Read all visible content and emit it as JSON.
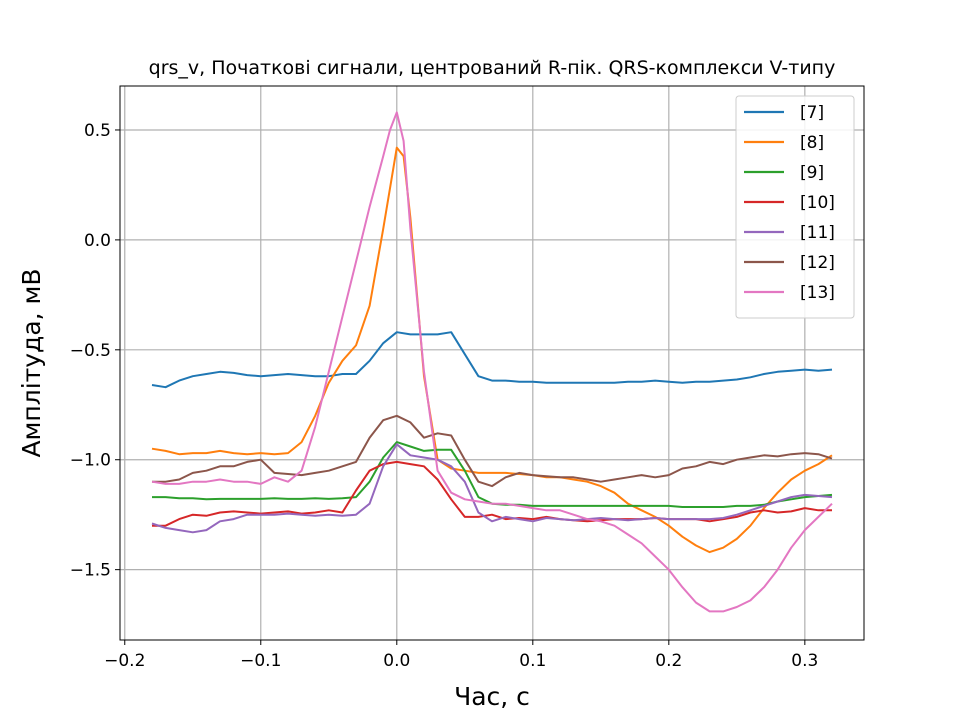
{
  "chart_data": {
    "type": "line",
    "title": "qrs_v, Початкові сигнали, центрований R-пік. QRS-комплекси V-типу",
    "xlabel": "Час, с",
    "ylabel": "Амплітуда, мВ",
    "xlim": [
      -0.2035,
      0.3435
    ],
    "ylim": [
      -1.82,
      0.7
    ],
    "xticks": [
      -0.2,
      -0.1,
      0.0,
      0.1,
      0.2,
      0.3
    ],
    "xtick_labels": [
      "−0.2",
      "−0.1",
      "0.0",
      "0.1",
      "0.2",
      "0.3"
    ],
    "yticks": [
      -1.5,
      -1.0,
      -0.5,
      0.0,
      0.5
    ],
    "ytick_labels": [
      "−1.5",
      "−1.0",
      "−0.5",
      "0.0",
      "0.5"
    ],
    "grid": true,
    "legend_position": "top-right",
    "series": [
      {
        "name": "[7]",
        "color": "#1f77b4",
        "x": [
          -0.18,
          -0.17,
          -0.16,
          -0.15,
          -0.14,
          -0.13,
          -0.12,
          -0.11,
          -0.1,
          -0.09,
          -0.08,
          -0.07,
          -0.06,
          -0.05,
          -0.04,
          -0.03,
          -0.02,
          -0.01,
          0.0,
          0.01,
          0.02,
          0.03,
          0.04,
          0.05,
          0.06,
          0.07,
          0.08,
          0.09,
          0.1,
          0.11,
          0.12,
          0.13,
          0.14,
          0.15,
          0.16,
          0.17,
          0.18,
          0.19,
          0.2,
          0.21,
          0.22,
          0.23,
          0.24,
          0.25,
          0.26,
          0.27,
          0.28,
          0.29,
          0.3,
          0.31,
          0.32
        ],
        "y": [
          -0.66,
          -0.67,
          -0.64,
          -0.62,
          -0.61,
          -0.6,
          -0.605,
          -0.615,
          -0.62,
          -0.615,
          -0.61,
          -0.615,
          -0.62,
          -0.62,
          -0.61,
          -0.61,
          -0.55,
          -0.47,
          -0.42,
          -0.43,
          -0.43,
          -0.43,
          -0.42,
          -0.52,
          -0.62,
          -0.64,
          -0.64,
          -0.645,
          -0.645,
          -0.65,
          -0.65,
          -0.65,
          -0.65,
          -0.65,
          -0.65,
          -0.645,
          -0.645,
          -0.64,
          -0.645,
          -0.65,
          -0.645,
          -0.645,
          -0.64,
          -0.635,
          -0.625,
          -0.61,
          -0.6,
          -0.595,
          -0.59,
          -0.595,
          -0.59
        ]
      },
      {
        "name": "[8]",
        "color": "#ff7f0e",
        "x": [
          -0.18,
          -0.17,
          -0.16,
          -0.15,
          -0.14,
          -0.13,
          -0.12,
          -0.11,
          -0.1,
          -0.09,
          -0.08,
          -0.07,
          -0.06,
          -0.05,
          -0.04,
          -0.03,
          -0.02,
          -0.01,
          0.0,
          0.005,
          0.01,
          0.02,
          0.03,
          0.04,
          0.05,
          0.06,
          0.07,
          0.08,
          0.09,
          0.1,
          0.11,
          0.12,
          0.13,
          0.14,
          0.15,
          0.16,
          0.17,
          0.18,
          0.19,
          0.2,
          0.21,
          0.22,
          0.23,
          0.24,
          0.25,
          0.26,
          0.27,
          0.28,
          0.29,
          0.3,
          0.31,
          0.32
        ],
        "y": [
          -0.95,
          -0.96,
          -0.975,
          -0.97,
          -0.97,
          -0.96,
          -0.97,
          -0.975,
          -0.97,
          -0.975,
          -0.97,
          -0.92,
          -0.8,
          -0.65,
          -0.55,
          -0.48,
          -0.3,
          0.05,
          0.42,
          0.38,
          0.1,
          -0.62,
          -1.0,
          -1.04,
          -1.05,
          -1.06,
          -1.06,
          -1.06,
          -1.065,
          -1.07,
          -1.08,
          -1.08,
          -1.09,
          -1.1,
          -1.12,
          -1.15,
          -1.2,
          -1.23,
          -1.26,
          -1.3,
          -1.35,
          -1.39,
          -1.42,
          -1.4,
          -1.36,
          -1.3,
          -1.22,
          -1.15,
          -1.09,
          -1.05,
          -1.02,
          -0.98
        ]
      },
      {
        "name": "[9]",
        "color": "#2ca02c",
        "x": [
          -0.18,
          -0.17,
          -0.16,
          -0.15,
          -0.14,
          -0.13,
          -0.12,
          -0.11,
          -0.1,
          -0.09,
          -0.08,
          -0.07,
          -0.06,
          -0.05,
          -0.04,
          -0.03,
          -0.02,
          -0.01,
          0.0,
          0.01,
          0.02,
          0.03,
          0.04,
          0.05,
          0.06,
          0.07,
          0.08,
          0.09,
          0.1,
          0.11,
          0.12,
          0.13,
          0.14,
          0.15,
          0.16,
          0.17,
          0.18,
          0.19,
          0.2,
          0.21,
          0.22,
          0.23,
          0.24,
          0.25,
          0.26,
          0.27,
          0.28,
          0.29,
          0.3,
          0.31,
          0.32
        ],
        "y": [
          -1.17,
          -1.17,
          -1.175,
          -1.175,
          -1.18,
          -1.178,
          -1.178,
          -1.178,
          -1.178,
          -1.175,
          -1.178,
          -1.178,
          -1.175,
          -1.178,
          -1.175,
          -1.17,
          -1.1,
          -0.99,
          -0.92,
          -0.94,
          -0.96,
          -0.955,
          -0.955,
          -1.05,
          -1.17,
          -1.2,
          -1.205,
          -1.205,
          -1.21,
          -1.21,
          -1.21,
          -1.21,
          -1.21,
          -1.21,
          -1.21,
          -1.21,
          -1.21,
          -1.21,
          -1.21,
          -1.215,
          -1.215,
          -1.215,
          -1.215,
          -1.21,
          -1.21,
          -1.205,
          -1.19,
          -1.18,
          -1.17,
          -1.165,
          -1.16
        ]
      },
      {
        "name": "[10]",
        "color": "#d62728",
        "x": [
          -0.18,
          -0.17,
          -0.16,
          -0.15,
          -0.14,
          -0.13,
          -0.12,
          -0.11,
          -0.1,
          -0.09,
          -0.08,
          -0.07,
          -0.06,
          -0.05,
          -0.04,
          -0.03,
          -0.02,
          -0.01,
          0.0,
          0.01,
          0.02,
          0.03,
          0.04,
          0.05,
          0.06,
          0.07,
          0.08,
          0.09,
          0.1,
          0.11,
          0.12,
          0.13,
          0.14,
          0.15,
          0.16,
          0.17,
          0.18,
          0.19,
          0.2,
          0.21,
          0.22,
          0.23,
          0.24,
          0.25,
          0.26,
          0.27,
          0.28,
          0.29,
          0.3,
          0.31,
          0.32
        ],
        "y": [
          -1.3,
          -1.3,
          -1.27,
          -1.25,
          -1.255,
          -1.24,
          -1.235,
          -1.24,
          -1.245,
          -1.24,
          -1.235,
          -1.245,
          -1.24,
          -1.23,
          -1.24,
          -1.14,
          -1.05,
          -1.02,
          -1.01,
          -1.02,
          -1.03,
          -1.09,
          -1.18,
          -1.26,
          -1.26,
          -1.25,
          -1.27,
          -1.265,
          -1.27,
          -1.26,
          -1.27,
          -1.275,
          -1.28,
          -1.275,
          -1.27,
          -1.27,
          -1.27,
          -1.265,
          -1.27,
          -1.27,
          -1.27,
          -1.28,
          -1.27,
          -1.26,
          -1.24,
          -1.23,
          -1.24,
          -1.235,
          -1.22,
          -1.23,
          -1.23
        ]
      },
      {
        "name": "[11]",
        "color": "#9467bd",
        "x": [
          -0.18,
          -0.17,
          -0.16,
          -0.15,
          -0.14,
          -0.13,
          -0.12,
          -0.11,
          -0.1,
          -0.09,
          -0.08,
          -0.07,
          -0.06,
          -0.05,
          -0.04,
          -0.03,
          -0.02,
          -0.01,
          0.0,
          0.01,
          0.02,
          0.03,
          0.04,
          0.05,
          0.06,
          0.07,
          0.08,
          0.09,
          0.1,
          0.11,
          0.12,
          0.13,
          0.14,
          0.15,
          0.16,
          0.17,
          0.18,
          0.19,
          0.2,
          0.21,
          0.22,
          0.23,
          0.24,
          0.25,
          0.26,
          0.27,
          0.28,
          0.29,
          0.3,
          0.31,
          0.32
        ],
        "y": [
          -1.29,
          -1.31,
          -1.32,
          -1.33,
          -1.32,
          -1.28,
          -1.27,
          -1.25,
          -1.25,
          -1.25,
          -1.245,
          -1.25,
          -1.255,
          -1.25,
          -1.255,
          -1.25,
          -1.2,
          -1.03,
          -0.93,
          -0.98,
          -0.99,
          -1.0,
          -1.03,
          -1.1,
          -1.24,
          -1.28,
          -1.26,
          -1.27,
          -1.28,
          -1.265,
          -1.27,
          -1.275,
          -1.27,
          -1.265,
          -1.27,
          -1.275,
          -1.27,
          -1.265,
          -1.27,
          -1.27,
          -1.27,
          -1.27,
          -1.265,
          -1.25,
          -1.23,
          -1.21,
          -1.19,
          -1.17,
          -1.16,
          -1.165,
          -1.17
        ]
      },
      {
        "name": "[12]",
        "color": "#8c564b",
        "x": [
          -0.18,
          -0.17,
          -0.16,
          -0.15,
          -0.14,
          -0.13,
          -0.12,
          -0.11,
          -0.1,
          -0.09,
          -0.08,
          -0.07,
          -0.06,
          -0.05,
          -0.04,
          -0.03,
          -0.02,
          -0.01,
          0.0,
          0.01,
          0.02,
          0.03,
          0.04,
          0.05,
          0.06,
          0.07,
          0.08,
          0.09,
          0.1,
          0.11,
          0.12,
          0.13,
          0.14,
          0.15,
          0.16,
          0.17,
          0.18,
          0.19,
          0.2,
          0.21,
          0.22,
          0.23,
          0.24,
          0.25,
          0.26,
          0.27,
          0.28,
          0.29,
          0.3,
          0.31,
          0.32
        ],
        "y": [
          -1.1,
          -1.1,
          -1.09,
          -1.06,
          -1.05,
          -1.03,
          -1.03,
          -1.01,
          -1.0,
          -1.06,
          -1.065,
          -1.07,
          -1.06,
          -1.05,
          -1.03,
          -1.01,
          -0.9,
          -0.82,
          -0.8,
          -0.83,
          -0.9,
          -0.88,
          -0.89,
          -1.0,
          -1.1,
          -1.12,
          -1.08,
          -1.06,
          -1.07,
          -1.075,
          -1.08,
          -1.08,
          -1.09,
          -1.1,
          -1.09,
          -1.08,
          -1.07,
          -1.08,
          -1.07,
          -1.04,
          -1.03,
          -1.01,
          -1.02,
          -1.0,
          -0.99,
          -0.98,
          -0.985,
          -0.975,
          -0.97,
          -0.975,
          -0.995
        ]
      },
      {
        "name": "[13]",
        "color": "#e377c2",
        "x": [
          -0.18,
          -0.17,
          -0.16,
          -0.15,
          -0.14,
          -0.13,
          -0.12,
          -0.11,
          -0.1,
          -0.09,
          -0.08,
          -0.07,
          -0.06,
          -0.05,
          -0.04,
          -0.03,
          -0.02,
          -0.01,
          -0.005,
          0.0,
          0.005,
          0.01,
          0.02,
          0.03,
          0.04,
          0.05,
          0.06,
          0.07,
          0.08,
          0.09,
          0.1,
          0.11,
          0.12,
          0.13,
          0.14,
          0.15,
          0.16,
          0.17,
          0.18,
          0.19,
          0.2,
          0.21,
          0.22,
          0.23,
          0.24,
          0.25,
          0.26,
          0.27,
          0.28,
          0.29,
          0.3,
          0.31,
          0.32
        ],
        "y": [
          -1.1,
          -1.11,
          -1.11,
          -1.1,
          -1.1,
          -1.09,
          -1.1,
          -1.1,
          -1.11,
          -1.08,
          -1.1,
          -1.05,
          -0.85,
          -0.6,
          -0.35,
          -0.1,
          0.15,
          0.38,
          0.5,
          0.58,
          0.45,
          0.05,
          -0.6,
          -1.05,
          -1.15,
          -1.18,
          -1.19,
          -1.2,
          -1.2,
          -1.21,
          -1.22,
          -1.23,
          -1.23,
          -1.25,
          -1.27,
          -1.28,
          -1.3,
          -1.34,
          -1.38,
          -1.44,
          -1.5,
          -1.58,
          -1.65,
          -1.69,
          -1.69,
          -1.67,
          -1.64,
          -1.58,
          -1.5,
          -1.4,
          -1.32,
          -1.26,
          -1.2
        ]
      }
    ]
  }
}
